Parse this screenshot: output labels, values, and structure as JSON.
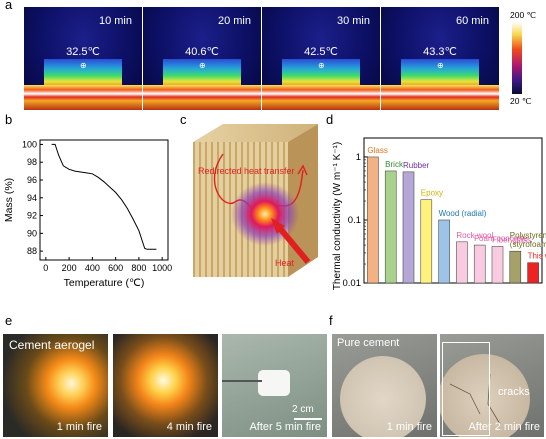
{
  "panel_labels": {
    "a": "a",
    "b": "b",
    "c": "c",
    "d": "d",
    "e": "e",
    "f": "f"
  },
  "panel_a": {
    "frames": [
      {
        "time": "10 min",
        "temp": "32.5℃"
      },
      {
        "time": "20 min",
        "temp": "40.6℃"
      },
      {
        "time": "30 min",
        "temp": "42.5℃"
      },
      {
        "time": "60 min",
        "temp": "43.3℃"
      }
    ],
    "colorbar": {
      "max": "200 ℃",
      "min": "20 ℃"
    }
  },
  "panel_c": {
    "redirect_label": "Redirected heat transfer",
    "heat_label": "Heat"
  },
  "panel_e": {
    "title": "Cement aerogel",
    "captions": [
      "1 min fire",
      "4 min fire",
      "After 5 min fire"
    ],
    "scale": "2 cm"
  },
  "panel_f": {
    "title": "Pure cement",
    "captions": [
      "1 min fire",
      "After 2 min fire"
    ],
    "cracks": "cracks"
  },
  "chart_data": [
    {
      "type": "line",
      "xlabel": "Temperature (℃)",
      "ylabel": "Mass (%)",
      "xlim": [
        -50,
        1050
      ],
      "ylim": [
        87,
        100.5
      ],
      "xticks": [
        0,
        200,
        400,
        600,
        800,
        1000
      ],
      "yticks": [
        88,
        90,
        92,
        94,
        96,
        98,
        100
      ],
      "x": [
        50,
        80,
        110,
        150,
        200,
        250,
        300,
        350,
        400,
        450,
        500,
        550,
        600,
        650,
        700,
        750,
        800,
        850,
        870,
        900,
        950
      ],
      "y": [
        100,
        100,
        98.8,
        97.6,
        97.2,
        97,
        96.9,
        96.8,
        96.7,
        96.3,
        95.8,
        95.2,
        94.6,
        93.8,
        92.8,
        91.6,
        90.3,
        88.3,
        88.2,
        88.2,
        88.2
      ]
    },
    {
      "type": "bar",
      "ylabel": "Thermal conductivity (W m⁻¹ K⁻¹)",
      "yscale": "log",
      "ylim": [
        0.01,
        2
      ],
      "yticks": [
        0.01,
        0.1,
        1
      ],
      "ytick_labels": [
        "0.01",
        "0.1",
        "1"
      ],
      "categories": [
        "Glass",
        "Brick",
        "Rubber",
        "Epoxy",
        "Wood (radial)",
        "Rock wool",
        "Foam concrete",
        "Fiber glass",
        "Polystyrene (styrofoam)",
        "This work"
      ],
      "label_lines": [
        [
          "Glass"
        ],
        [
          "Brick"
        ],
        [
          "Rubber"
        ],
        [
          "Epoxy"
        ],
        [
          "Wood (radial)"
        ],
        [
          "Rock wool"
        ],
        [
          "Foam concrete"
        ],
        [
          "Fiber glass"
        ],
        [
          "Polystyrene",
          "(styrofoam)"
        ],
        [
          "This work"
        ]
      ],
      "values": [
        1.0,
        0.6,
        0.58,
        0.21,
        0.1,
        0.045,
        0.04,
        0.038,
        0.032,
        0.021
      ],
      "colors": [
        "#f4b183",
        "#a9d18e",
        "#b4a7d6",
        "#fff27a",
        "#9dc3e6",
        "#f8cbe0",
        "#f8cbe0",
        "#f8cbe0",
        "#a6a06a",
        "#ee2222"
      ],
      "label_colors": [
        "#e8731e",
        "#2e8b2e",
        "#7030a0",
        "#d6b300",
        "#1f78b4",
        "#e75ca5",
        "#e75ca5",
        "#e75ca5",
        "#6b6b1e",
        "#e82222"
      ]
    }
  ]
}
